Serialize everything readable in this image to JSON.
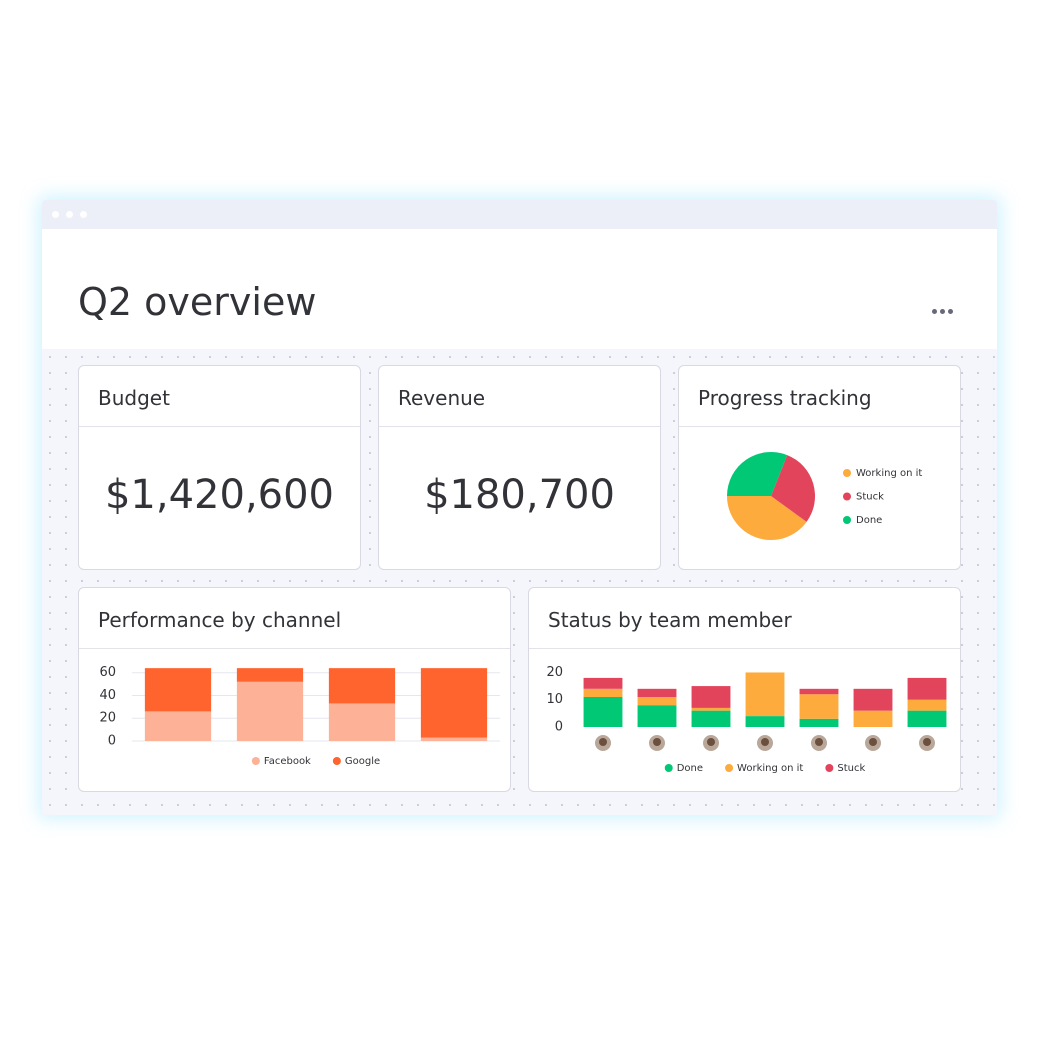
{
  "header": {
    "title": "Q2 overview"
  },
  "cards": [
    {
      "title": "Budget",
      "value": "$1,420,600"
    },
    {
      "title": "Revenue",
      "value": "$180,700"
    }
  ],
  "chart_data": [
    {
      "type": "pie",
      "title": "Progress tracking",
      "categories": [
        "Working on it",
        "Stuck",
        "Done"
      ],
      "values": [
        40,
        29,
        31
      ],
      "colors": [
        "#fdab3d",
        "#e2445c",
        "#00c875"
      ],
      "legend": "right"
    },
    {
      "type": "bar",
      "stacked": true,
      "title": "Performance by channel",
      "categories": [
        null,
        null,
        null,
        null
      ],
      "series": [
        {
          "name": "Facebook",
          "color": "#fdb197",
          "values": [
            26,
            52,
            33,
            3
          ]
        },
        {
          "name": "Google",
          "color": "#ff642e",
          "values": [
            38,
            12,
            31,
            61
          ]
        }
      ],
      "ylim": [
        0,
        65
      ],
      "yticks": [
        0,
        20,
        40,
        60
      ],
      "grid": true,
      "legend": "bottom"
    },
    {
      "type": "bar",
      "stacked": true,
      "title": "Status by team member",
      "categories": [
        null,
        null,
        null,
        null,
        null,
        null,
        null
      ],
      "series": [
        {
          "name": "Done",
          "color": "#00c875",
          "values": [
            11,
            8,
            6,
            4,
            3,
            0,
            6
          ]
        },
        {
          "name": "Working on it",
          "color": "#fdab3d",
          "values": [
            3,
            3,
            1,
            16,
            9,
            6,
            4
          ]
        },
        {
          "name": "Stuck",
          "color": "#e2445c",
          "values": [
            4,
            3,
            8,
            0,
            2,
            8,
            8
          ]
        }
      ],
      "ylim": [
        0,
        22
      ],
      "yticks": [
        0,
        10,
        20
      ],
      "grid": false,
      "legend": "bottom"
    }
  ]
}
